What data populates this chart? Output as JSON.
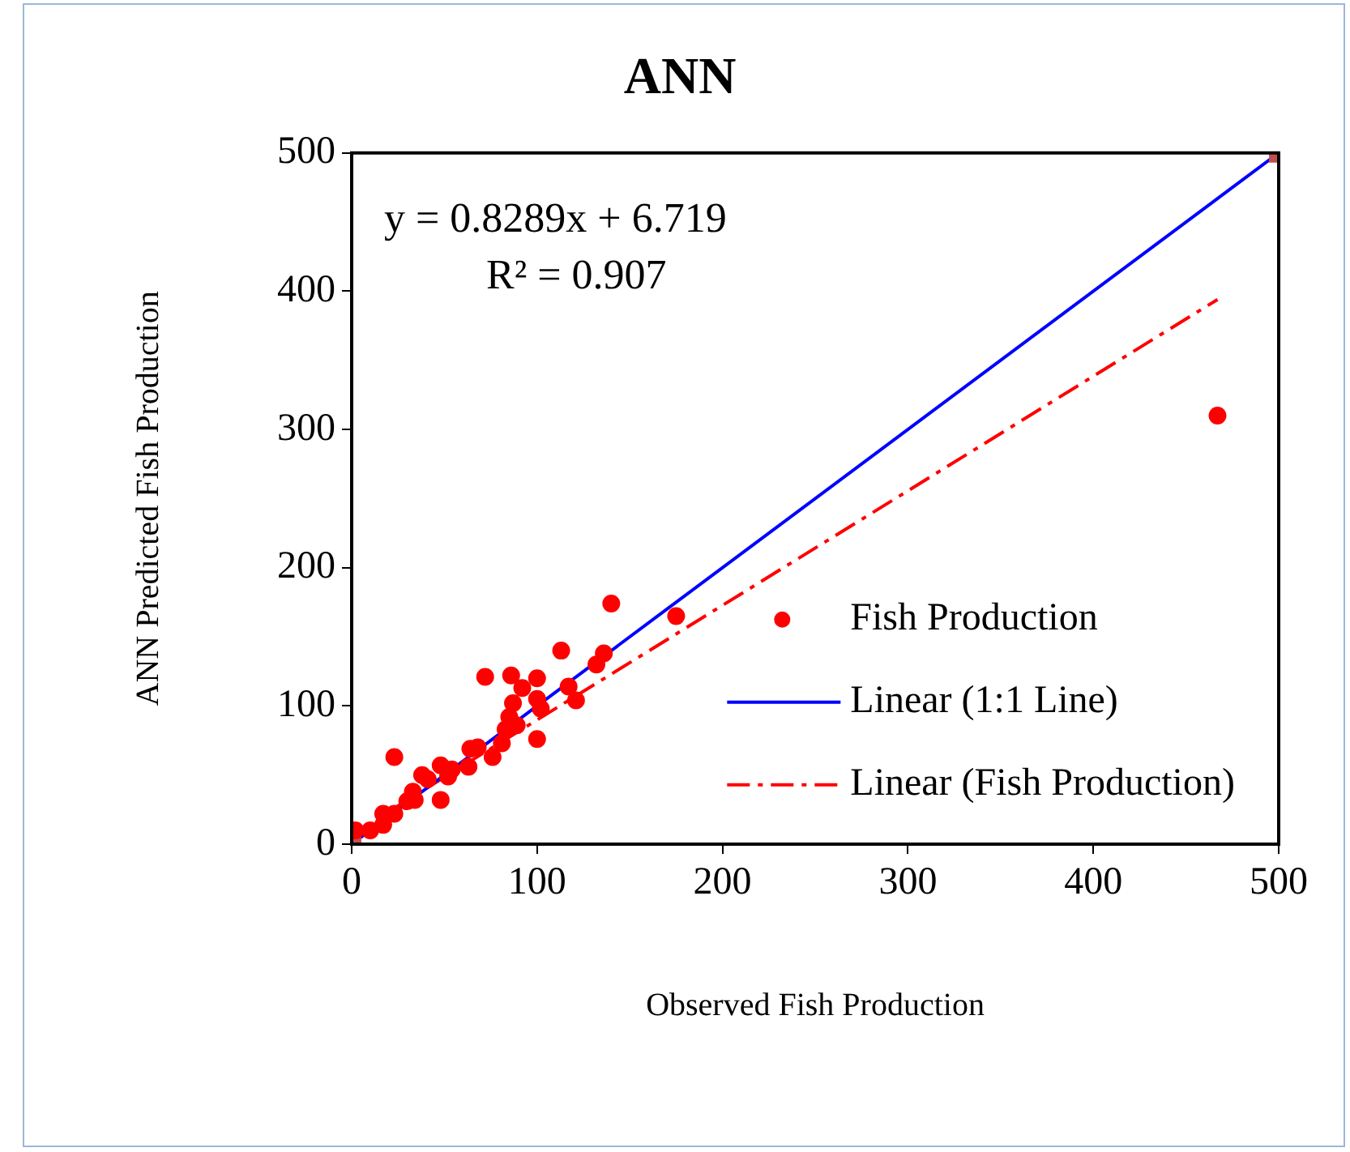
{
  "chart_data": {
    "type": "scatter",
    "title": "ANN",
    "xlabel": "Observed Fish Production",
    "ylabel": "ANN Predicted Fish Production",
    "xlim": [
      0,
      500
    ],
    "xticks": [
      0,
      100,
      200,
      300,
      400,
      500
    ],
    "ylim": [
      0,
      500
    ],
    "yticks": [
      0,
      100,
      200,
      300,
      400,
      500
    ],
    "grid": false,
    "legend": "right",
    "annotations": [
      "y = 0.8289x + 6.719",
      "R² = 0.907"
    ],
    "series": [
      {
        "name": "Fish Production",
        "type": "scatter",
        "color": "#ff0000",
        "marker": "circle",
        "x": [
          467,
          140,
          175,
          113,
          136,
          132,
          72,
          86,
          100,
          92,
          117,
          121,
          87,
          100,
          102,
          85,
          100,
          89,
          83,
          81,
          76,
          68,
          64,
          63,
          23,
          48,
          54,
          52,
          38,
          41,
          48,
          33,
          30,
          34,
          17,
          23,
          17,
          10,
          2
        ],
        "values": [
          310,
          174,
          165,
          140,
          138,
          130,
          121,
          122,
          120,
          113,
          114,
          104,
          102,
          105,
          98,
          92,
          76,
          86,
          83,
          73,
          63,
          70,
          69,
          56,
          63,
          57,
          54,
          49,
          50,
          47,
          32,
          38,
          31,
          32,
          22,
          22,
          14,
          10,
          10
        ]
      },
      {
        "name": "Linear (1:1 Line)",
        "type": "line",
        "color": "#0000ff",
        "marker": "square",
        "line_style": "solid",
        "x": [
          0,
          500
        ],
        "values": [
          0,
          500
        ]
      },
      {
        "name": "Linear (Fish Production)",
        "type": "line",
        "color": "#ff0000",
        "marker": "none",
        "line_style": "dashed",
        "x": [
          0,
          467
        ],
        "values": [
          7,
          394
        ]
      }
    ]
  }
}
